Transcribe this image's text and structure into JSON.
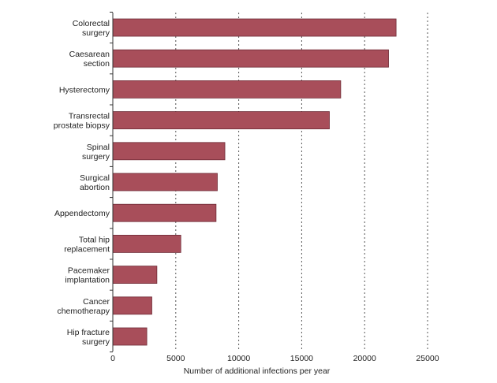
{
  "chart_data": {
    "type": "bar",
    "orientation": "horizontal",
    "categories": [
      [
        "Colorectal",
        "surgery"
      ],
      [
        "Caesarean",
        "section"
      ],
      [
        "Hysterectomy"
      ],
      [
        "Transrectal",
        "prostate biopsy"
      ],
      [
        "Spinal",
        "surgery"
      ],
      [
        "Surgical",
        "abortion"
      ],
      [
        "Appendectomy"
      ],
      [
        "Total hip",
        "replacement"
      ],
      [
        "Pacemaker",
        "implantation"
      ],
      [
        "Cancer",
        "chemotherapy"
      ],
      [
        "Hip fracture",
        "surgery"
      ]
    ],
    "values": [
      22500,
      21900,
      18100,
      17200,
      8900,
      8300,
      8200,
      5400,
      3500,
      3100,
      2700
    ],
    "xlabel": "Number of additional infections per year",
    "ylabel": "",
    "xlim": [
      0,
      25000
    ],
    "xticks": [
      0,
      5000,
      10000,
      15000,
      20000,
      25000
    ],
    "grid": "vertical-dashed",
    "bar_color": "#a84e5a",
    "bar_edge_color": "#6e2b36",
    "axis_color": "#333333",
    "grid_color": "#555555"
  }
}
